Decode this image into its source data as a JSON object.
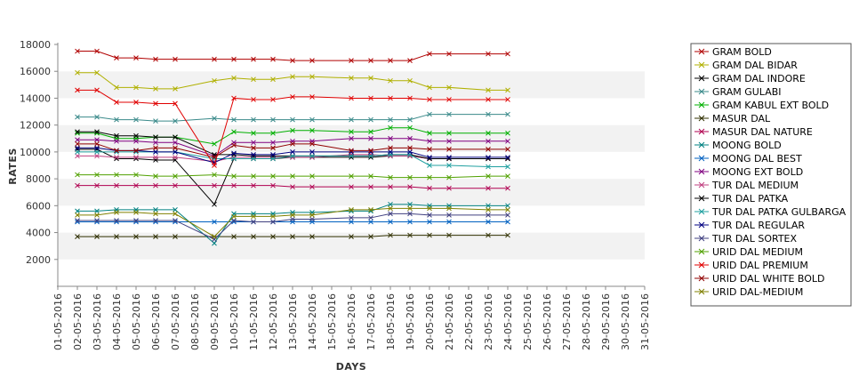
{
  "chart_data": {
    "type": "line",
    "title": "",
    "xlabel": "DAYS",
    "ylabel": "RATES",
    "ylim": [
      0,
      18000
    ],
    "yticks": [
      2000,
      4000,
      6000,
      8000,
      10000,
      12000,
      14000,
      16000,
      18000
    ],
    "grid": "alternating horizontal bands",
    "legend_position": "right",
    "categories": [
      "01-05-2016",
      "02-05-2016",
      "03-05-2016",
      "04-05-2016",
      "05-05-2016",
      "06-05-2016",
      "07-05-2016",
      "08-05-2016",
      "09-05-2016",
      "10-05-2016",
      "11-05-2016",
      "12-05-2016",
      "13-05-2016",
      "14-05-2016",
      "15-05-2016",
      "16-05-2016",
      "17-05-2016",
      "18-05-2016",
      "19-05-2016",
      "20-05-2016",
      "21-05-2016",
      "22-05-2016",
      "23-05-2016",
      "24-05-2016",
      "25-05-2016",
      "26-05-2016",
      "27-05-2016",
      "28-05-2016",
      "29-05-2016",
      "30-05-2016",
      "31-05-2016"
    ],
    "series": [
      {
        "name": "GRAM BOLD",
        "color": "#b00000",
        "values": [
          null,
          17500,
          17500,
          17000,
          17000,
          16900,
          16900,
          null,
          16900,
          16900,
          16900,
          16900,
          16800,
          16800,
          null,
          16800,
          16800,
          16800,
          16800,
          17300,
          17300,
          null,
          17300,
          17300,
          null,
          null,
          null,
          null,
          null,
          null,
          null
        ]
      },
      {
        "name": "GRAM DAL BIDAR",
        "color": "#b0b000",
        "values": [
          null,
          15900,
          15900,
          14800,
          14800,
          14700,
          14700,
          null,
          15300,
          15500,
          15400,
          15400,
          15600,
          15600,
          null,
          15500,
          15500,
          15300,
          15300,
          14800,
          14800,
          null,
          14600,
          14600,
          null,
          null,
          null,
          null,
          null,
          null,
          null
        ]
      },
      {
        "name": "GRAM DAL INDORE",
        "color": "#000000",
        "values": [
          null,
          10200,
          10200,
          9500,
          9500,
          9400,
          9400,
          null,
          6100,
          9500,
          9500,
          9500,
          9600,
          9600,
          null,
          9600,
          9600,
          9700,
          9700,
          9500,
          9500,
          null,
          9500,
          9500,
          null,
          null,
          null,
          null,
          null,
          null,
          null
        ]
      },
      {
        "name": "GRAM GULABI",
        "color": "#3a8a8a",
        "values": [
          null,
          12600,
          12600,
          12400,
          12400,
          12300,
          12300,
          null,
          12500,
          12400,
          12400,
          12400,
          12400,
          12400,
          null,
          12400,
          12400,
          12400,
          12400,
          12800,
          12800,
          null,
          12800,
          12800,
          null,
          null,
          null,
          null,
          null,
          null,
          null
        ]
      },
      {
        "name": "GRAM KABUL EXT BOLD",
        "color": "#00b000",
        "values": [
          null,
          11400,
          11400,
          11000,
          11000,
          11100,
          11100,
          null,
          10600,
          11500,
          11400,
          11400,
          11600,
          11600,
          null,
          11500,
          11500,
          11800,
          11800,
          11400,
          11400,
          null,
          11400,
          11400,
          null,
          null,
          null,
          null,
          null,
          null,
          null
        ]
      },
      {
        "name": "MASUR DAL",
        "color": "#303000",
        "values": [
          null,
          3700,
          3700,
          3700,
          3700,
          3700,
          3700,
          null,
          3700,
          3700,
          3700,
          3700,
          3700,
          3700,
          null,
          3700,
          3700,
          3800,
          3800,
          3800,
          3800,
          null,
          3800,
          3800,
          null,
          null,
          null,
          null,
          null,
          null,
          null
        ]
      },
      {
        "name": "MASUR DAL NATURE",
        "color": "#b00050",
        "values": [
          null,
          7500,
          7500,
          7500,
          7500,
          7500,
          7500,
          null,
          7500,
          7500,
          7500,
          7500,
          7400,
          7400,
          null,
          7400,
          7400,
          7400,
          7400,
          7300,
          7300,
          null,
          7300,
          7300,
          null,
          null,
          null,
          null,
          null,
          null,
          null
        ]
      },
      {
        "name": "MOONG BOLD",
        "color": "#008080",
        "values": [
          null,
          5600,
          5600,
          5700,
          5700,
          5700,
          5700,
          null,
          3200,
          5400,
          5400,
          5400,
          5500,
          5500,
          null,
          5600,
          5600,
          6100,
          6100,
          6000,
          6000,
          null,
          6000,
          6000,
          null,
          null,
          null,
          null,
          null,
          null,
          null
        ]
      },
      {
        "name": "MOONG DAL BEST",
        "color": "#0060c0",
        "values": [
          null,
          4800,
          4800,
          4800,
          4800,
          4800,
          4800,
          null,
          4800,
          4800,
          4800,
          4800,
          4800,
          4800,
          null,
          4800,
          4800,
          4800,
          4800,
          4800,
          4800,
          null,
          4800,
          4800,
          null,
          null,
          null,
          null,
          null,
          null,
          null
        ]
      },
      {
        "name": "MOONG EXT BOLD",
        "color": "#800080",
        "values": [
          null,
          10900,
          10900,
          10800,
          10800,
          10700,
          10700,
          null,
          9700,
          10700,
          10700,
          10700,
          10800,
          10800,
          null,
          11000,
          11000,
          11000,
          11000,
          10800,
          10800,
          null,
          10800,
          10800,
          null,
          null,
          null,
          null,
          null,
          null,
          null
        ]
      },
      {
        "name": "TUR DAL MEDIUM",
        "color": "#c04080",
        "values": [
          null,
          9700,
          9700,
          9600,
          9600,
          9600,
          9600,
          null,
          9300,
          9600,
          9600,
          9600,
          9600,
          9600,
          null,
          9800,
          9800,
          9700,
          9700,
          9500,
          9500,
          null,
          9500,
          9500,
          null,
          null,
          null,
          null,
          null,
          null,
          null
        ]
      },
      {
        "name": "TUR DAL PATKA",
        "color": "#000000",
        "values": [
          null,
          11500,
          11500,
          11200,
          11200,
          11100,
          11100,
          null,
          9800,
          9800,
          9700,
          9700,
          9700,
          9700,
          null,
          9700,
          9700,
          9800,
          9800,
          9500,
          9500,
          null,
          9500,
          9500,
          null,
          null,
          null,
          null,
          null,
          null,
          null
        ]
      },
      {
        "name": "TUR DAL PATKA GULBARGA",
        "color": "#20a0a0",
        "values": [
          null,
          10000,
          10000,
          10000,
          10000,
          10000,
          10000,
          null,
          9500,
          9500,
          9500,
          9500,
          9700,
          9700,
          null,
          9700,
          9700,
          9800,
          9800,
          9000,
          9000,
          null,
          8900,
          8900,
          null,
          null,
          null,
          null,
          null,
          null,
          null
        ]
      },
      {
        "name": "TUR DAL REGULAR",
        "color": "#000080",
        "values": [
          null,
          10300,
          10300,
          10100,
          10100,
          10000,
          10000,
          null,
          9200,
          9900,
          9800,
          9800,
          10000,
          10000,
          null,
          10000,
          10000,
          10000,
          10000,
          9600,
          9600,
          null,
          9600,
          9600,
          null,
          null,
          null,
          null,
          null,
          null,
          null
        ]
      },
      {
        "name": "TUR DAL SORTEX",
        "color": "#404080",
        "values": [
          null,
          4900,
          4900,
          4900,
          4900,
          4900,
          4900,
          null,
          3500,
          4900,
          4800,
          4800,
          5000,
          5000,
          null,
          5100,
          5100,
          5400,
          5400,
          5300,
          5300,
          null,
          5300,
          5300,
          null,
          null,
          null,
          null,
          null,
          null,
          null
        ]
      },
      {
        "name": "URID DAL MEDIUM",
        "color": "#50a000",
        "values": [
          null,
          8300,
          8300,
          8300,
          8300,
          8200,
          8200,
          null,
          8300,
          8200,
          8200,
          8200,
          8200,
          8200,
          null,
          8200,
          8200,
          8100,
          8100,
          8100,
          8100,
          null,
          8200,
          8200,
          null,
          null,
          null,
          null,
          null,
          null,
          null
        ]
      },
      {
        "name": "URID DAL PREMIUM",
        "color": "#e00000",
        "values": [
          null,
          14600,
          14600,
          13700,
          13700,
          13600,
          13600,
          null,
          9000,
          14000,
          13900,
          13900,
          14100,
          14100,
          null,
          14000,
          14000,
          14000,
          14000,
          13900,
          13900,
          null,
          13900,
          13900,
          null,
          null,
          null,
          null,
          null,
          null,
          null
        ]
      },
      {
        "name": "URID DAL WHITE BOLD",
        "color": "#900000",
        "values": [
          null,
          10600,
          10600,
          10100,
          10100,
          10300,
          10300,
          null,
          9600,
          10500,
          10300,
          10300,
          10600,
          10600,
          null,
          10100,
          10100,
          10300,
          10300,
          10200,
          10200,
          null,
          10200,
          10200,
          null,
          null,
          null,
          null,
          null,
          null,
          null
        ]
      },
      {
        "name": "URID DAL-MEDIUM",
        "color": "#808000",
        "values": [
          null,
          5300,
          5300,
          5500,
          5500,
          5400,
          5400,
          null,
          3700,
          5200,
          5200,
          5200,
          5300,
          5300,
          null,
          5700,
          5700,
          5800,
          5800,
          5800,
          5800,
          null,
          5700,
          5700,
          null,
          null,
          null,
          null,
          null,
          null,
          null
        ]
      }
    ]
  }
}
